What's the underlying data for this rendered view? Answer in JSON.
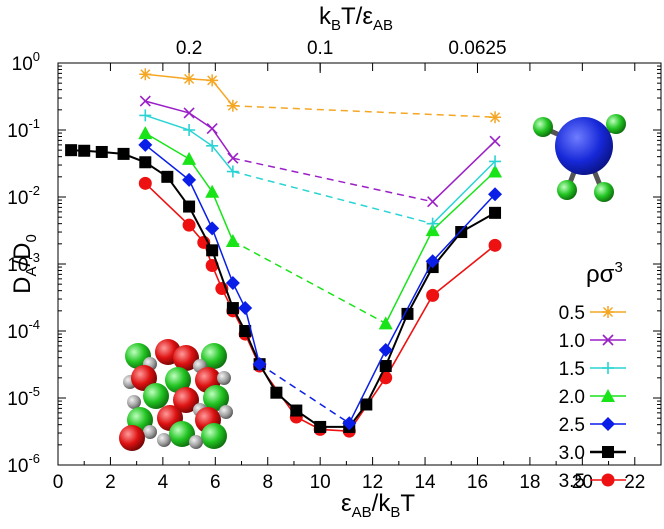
{
  "chart_data": {
    "type": "line",
    "x_axis": {
      "label_main": "ε",
      "label_sub1": "AB",
      "label_mid": "/k",
      "label_sub2": "B",
      "label_end": "T",
      "range": [
        0,
        23
      ],
      "ticks": [
        0,
        2,
        4,
        6,
        8,
        10,
        12,
        14,
        16,
        18,
        20,
        22
      ],
      "tick_labels": [
        "0",
        "2",
        "4",
        "6",
        "8",
        "10",
        "12",
        "14",
        "16",
        "18",
        "20",
        "22"
      ]
    },
    "top_axis": {
      "label_main": "k",
      "label_sub1": "B",
      "label_mid": "T/ε",
      "label_sub2": "AB",
      "ticks": [
        5,
        10,
        16
      ],
      "tick_labels": [
        "0.2",
        "0.1",
        "0.0625"
      ]
    },
    "y_axis": {
      "label_main": "D",
      "label_sub1": "A",
      "label_mid": "/D",
      "label_sub2": "0",
      "scale": "log",
      "range_log10": [
        -6,
        0
      ],
      "ticks_log10": [
        -6,
        -5,
        -4,
        -3,
        -2,
        -1,
        0
      ],
      "tick_base": "10",
      "tick_exponents": [
        "-6",
        "-5",
        "-4",
        "-3",
        "-2",
        "-1",
        "0"
      ]
    },
    "legend": {
      "title_main": "ρσ",
      "title_sup": "3",
      "position": "right-middle"
    },
    "series": [
      {
        "name": "0.5",
        "color": "#f5a623",
        "marker": "star",
        "solid": [
          [
            3.33,
            0.68
          ],
          [
            5.0,
            0.58
          ],
          [
            5.88,
            0.55
          ],
          [
            6.67,
            0.23
          ]
        ],
        "dashed": [
          [
            6.67,
            0.23
          ],
          [
            16.67,
            0.155
          ]
        ]
      },
      {
        "name": "1.0",
        "color": "#9b1fc7",
        "marker": "x",
        "solid": [
          [
            3.33,
            0.27
          ],
          [
            5.0,
            0.18
          ],
          [
            5.88,
            0.105
          ],
          [
            6.67,
            0.038
          ]
        ],
        "dashed": [
          [
            6.67,
            0.038
          ],
          [
            14.29,
            0.0085
          ]
        ],
        "solid2": [
          [
            14.29,
            0.0085
          ],
          [
            16.67,
            0.068
          ]
        ]
      },
      {
        "name": "1.5",
        "color": "#2ad4d4",
        "marker": "plus",
        "solid": [
          [
            3.33,
            0.165
          ],
          [
            5.0,
            0.1
          ],
          [
            5.88,
            0.058
          ],
          [
            6.67,
            0.024
          ]
        ],
        "dashed": [
          [
            6.67,
            0.024
          ],
          [
            14.29,
            0.004
          ]
        ],
        "solid2": [
          [
            14.29,
            0.004
          ],
          [
            16.67,
            0.034
          ]
        ]
      },
      {
        "name": "2.0",
        "color": "#18e418",
        "marker": "triangle",
        "solid": [
          [
            3.33,
            0.09
          ],
          [
            5.0,
            0.037
          ],
          [
            5.88,
            0.012
          ],
          [
            6.67,
            0.0022
          ]
        ],
        "dashed": [
          [
            6.67,
            0.0022
          ],
          [
            12.5,
            0.00013
          ]
        ],
        "solid2": [
          [
            12.5,
            0.00013
          ],
          [
            14.29,
            0.0032
          ],
          [
            16.67,
            0.024
          ]
        ]
      },
      {
        "name": "2.5",
        "color": "#0a1ee8",
        "marker": "diamond",
        "solid": [
          [
            3.33,
            0.06
          ],
          [
            5.0,
            0.018
          ],
          [
            5.88,
            0.0034
          ],
          [
            6.67,
            0.00052
          ],
          [
            7.14,
            0.00022
          ],
          [
            7.69,
            3.2e-05
          ]
        ],
        "dashed": [
          [
            7.69,
            3.2e-05
          ],
          [
            11.11,
            4.2e-06
          ]
        ],
        "solid2": [
          [
            11.11,
            4.2e-06
          ],
          [
            12.5,
            5.2e-05
          ],
          [
            14.29,
            0.0011
          ],
          [
            16.67,
            0.011
          ]
        ]
      },
      {
        "name": "3.0",
        "color": "#000000",
        "marker": "square",
        "solid": [
          [
            0.5,
            0.05
          ],
          [
            1.0,
            0.049
          ],
          [
            1.67,
            0.047
          ],
          [
            2.5,
            0.044
          ],
          [
            3.33,
            0.033
          ],
          [
            4.17,
            0.02
          ],
          [
            5.0,
            0.0072
          ],
          [
            5.88,
            0.0016
          ],
          [
            6.67,
            0.00022
          ],
          [
            7.14,
            0.0001
          ],
          [
            7.69,
            3.2e-05
          ],
          [
            8.33,
            1.2e-05
          ],
          [
            9.09,
            6.5e-06
          ],
          [
            10.0,
            3.7e-06
          ],
          [
            11.11,
            3.7e-06
          ],
          [
            11.76,
            8e-06
          ],
          [
            12.5,
            3e-05
          ],
          [
            13.33,
            0.00018
          ],
          [
            14.29,
            0.0009
          ],
          [
            15.38,
            0.003
          ],
          [
            16.67,
            0.0058
          ]
        ]
      },
      {
        "name": "3.5",
        "color": "#ee1111",
        "marker": "circle",
        "solid": [
          [
            3.33,
            0.016
          ],
          [
            5.0,
            0.0038
          ],
          [
            5.56,
            0.0021
          ],
          [
            5.88,
            0.00095
          ],
          [
            6.25,
            0.00043
          ],
          [
            6.67,
            0.0002
          ],
          [
            7.14,
            9e-05
          ],
          [
            7.69,
            3e-05
          ],
          [
            9.09,
            5.2e-06
          ],
          [
            10.0,
            3.4e-06
          ],
          [
            11.11,
            3.2e-06
          ],
          [
            12.5,
            2e-05
          ],
          [
            14.29,
            0.00034
          ],
          [
            16.67,
            0.0019
          ]
        ]
      }
    ]
  }
}
